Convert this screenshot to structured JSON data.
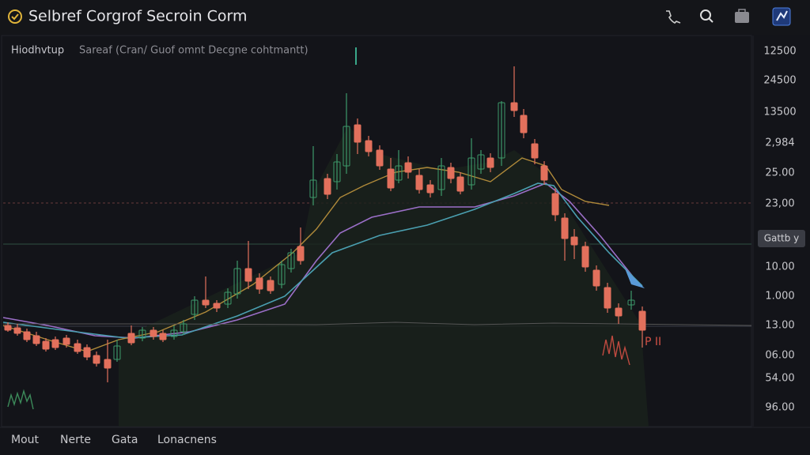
{
  "header": {
    "title": "Selbref Corgrof Secroin Corm"
  },
  "chart": {
    "symbol": "Hiodhvtup",
    "legend": "Sareaf (Cran/ Guof omnt Decgne cohtmantt)",
    "price_labels": [
      "12500",
      "24500",
      "13500",
      "2,984",
      "25.00",
      "23,00",
      "10.00",
      "1.000",
      "13.00",
      "06.00",
      "54.00",
      "96.00"
    ],
    "badge": "Gattb y",
    "marker": "P II"
  },
  "tabs": [
    "Mout",
    "Nerte",
    "Gata",
    "Lonacnens"
  ]
}
